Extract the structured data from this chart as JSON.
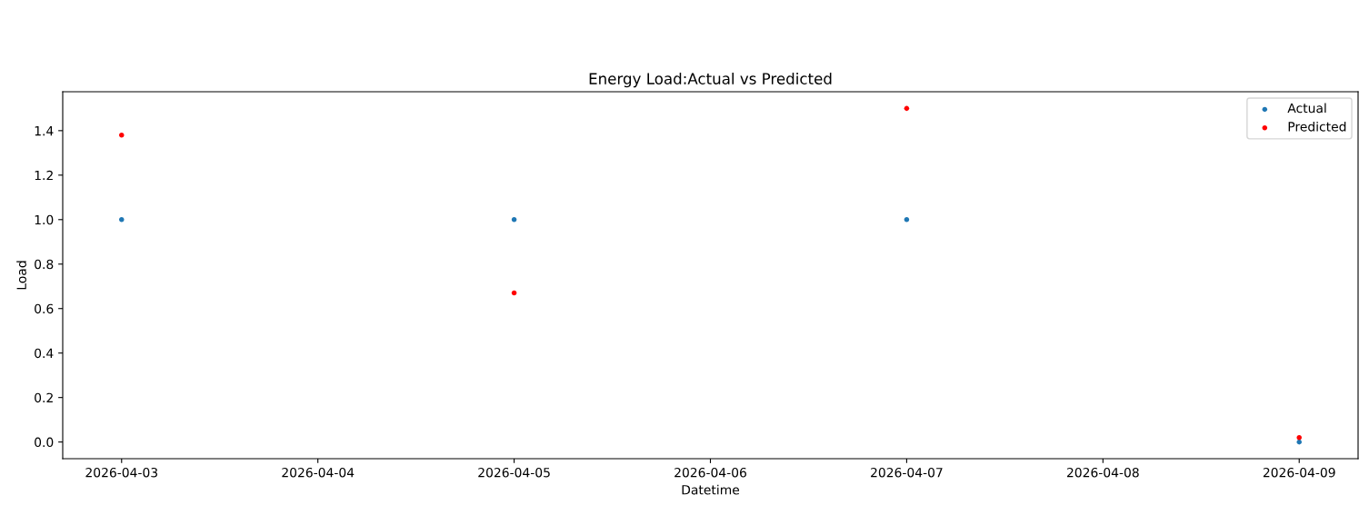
{
  "chart_data": {
    "type": "scatter",
    "title": "Energy Load:Actual vs Predicted",
    "xlabel": "Datetime",
    "ylabel": "Load",
    "x": [
      "2026-04-03",
      "2026-04-05",
      "2026-04-07",
      "2026-04-09"
    ],
    "series": [
      {
        "name": "Actual",
        "color": "#1f77b4",
        "values": [
          1.0,
          1.0,
          1.0,
          0.0
        ]
      },
      {
        "name": "Predicted",
        "color": "#ff0000",
        "values": [
          1.38,
          0.67,
          1.5,
          0.02
        ]
      }
    ],
    "xlim": [
      "2026-04-02T16:48",
      "2026-04-09T07:12"
    ],
    "xticks": [
      "2026-04-03",
      "2026-04-04",
      "2026-04-05",
      "2026-04-06",
      "2026-04-07",
      "2026-04-08",
      "2026-04-09"
    ],
    "ylim": [
      -0.075,
      1.575
    ],
    "yticks": [
      {
        "value": 0,
        "label": "0.0"
      },
      {
        "value": 0.2,
        "label": "0.2"
      },
      {
        "value": 0.4,
        "label": "0.4"
      },
      {
        "value": 0.6,
        "label": "0.6"
      },
      {
        "value": 0.8,
        "label": "0.8"
      },
      {
        "value": 1.0,
        "label": "1.0"
      },
      {
        "value": 1.2,
        "label": "1.2"
      },
      {
        "value": 1.4,
        "label": "1.4"
      }
    ],
    "legend": "top right",
    "marker": "circle"
  }
}
